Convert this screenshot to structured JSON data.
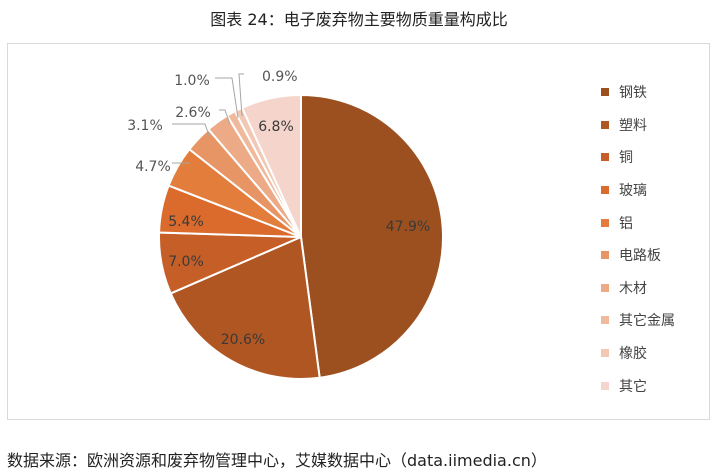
{
  "title": "图表 24：电子废弃物主要物质重量构成比",
  "source": "数据来源：欧洲资源和废弃物管理中心，艾媒数据中心（data.iimedia.cn）",
  "chart_data": {
    "type": "pie",
    "title": "图表 24：电子废弃物主要物质重量构成比",
    "legend_position": "right",
    "categories": [
      "钢铁",
      "塑料",
      "铜",
      "玻璃",
      "铝",
      "电路板",
      "木材",
      "其它金属",
      "橡胶",
      "其它"
    ],
    "values": [
      47.9,
      20.6,
      7.0,
      5.4,
      4.7,
      3.1,
      2.6,
      1.0,
      0.9,
      6.8
    ],
    "labels": [
      "47.9%",
      "20.6%",
      "7.0%",
      "5.4%",
      "4.7%",
      "3.1%",
      "2.6%",
      "1.0%",
      "0.9%",
      "6.8%"
    ],
    "colors": [
      "#9c501f",
      "#b05623",
      "#c55f27",
      "#da6b2d",
      "#e27d3c",
      "#e89566",
      "#ecaa86",
      "#f0b99b",
      "#f2c7b4",
      "#f5d5cb"
    ]
  }
}
